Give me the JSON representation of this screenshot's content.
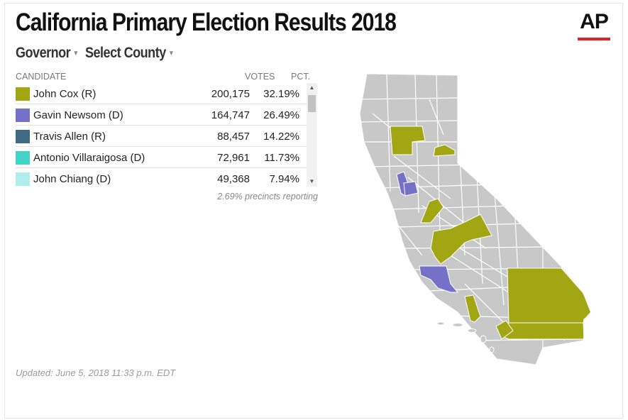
{
  "header": {
    "title": "California Primary Election Results 2018",
    "logo_text": "AP"
  },
  "filters": {
    "race": "Governor",
    "county": "Select County"
  },
  "table": {
    "columns": [
      "CANDIDATE",
      "VOTES",
      "PCT."
    ],
    "rows": [
      {
        "name": "John Cox (R)",
        "votes": "200,175",
        "pct": "32.19%",
        "color": "#a2a612"
      },
      {
        "name": "Gavin Newsom (D)",
        "votes": "164,747",
        "pct": "26.49%",
        "color": "#7570c8"
      },
      {
        "name": "Travis Allen (R)",
        "votes": "88,457",
        "pct": "14.22%",
        "color": "#3f6a86"
      },
      {
        "name": "Antonio Villaraigosa (D)",
        "votes": "72,961",
        "pct": "11.73%",
        "color": "#41d2c8"
      },
      {
        "name": "John Chiang (D)",
        "votes": "49,368",
        "pct": "7.94%",
        "color": "#b0eeee"
      }
    ]
  },
  "reporting": "2.69% precincts reporting",
  "updated": "Updated: June 5, 2018 11:33 p.m. EDT",
  "map": {
    "base_color": "#c8c8c8",
    "border_color": "#ffffff",
    "county_colors": {
      "cox": "#a2a612",
      "newsom": "#7570c8"
    }
  }
}
